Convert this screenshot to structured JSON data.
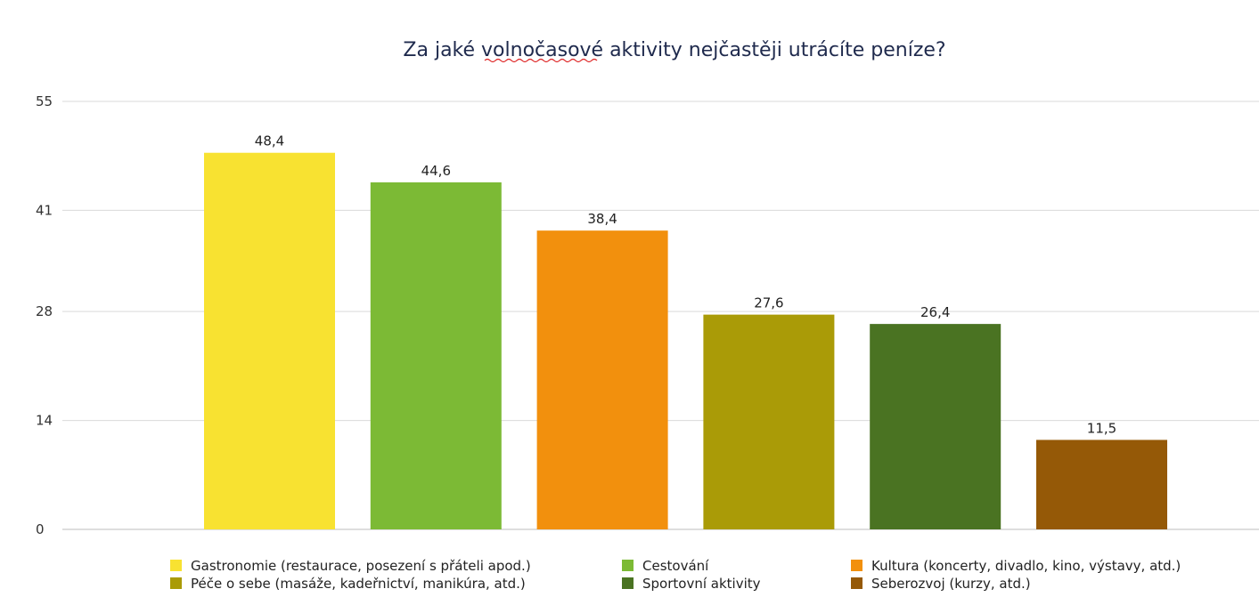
{
  "chart_data": {
    "type": "bar",
    "title": "Za jaké volnočasové aktivity nejčastěji utrácíte peníze?",
    "xlabel": "",
    "ylabel": "",
    "ylim": [
      0,
      55
    ],
    "yticks": [
      0,
      14,
      28,
      41,
      55
    ],
    "ytick_labels": [
      "0",
      "14",
      "28",
      "41",
      "55"
    ],
    "grid": true,
    "legend_position": "bottom",
    "categories": [
      "Gastronomie (restaurace, posezení s přáteli apod.)",
      "Cestování",
      "Kultura (koncerty, divadlo, kino, výstavy, atd.)",
      "Péče o sebe (masáže, kadeřnictví, manikúra, atd.)",
      "Sportovní aktivity",
      "Seberozvoj (kurzy, atd.)"
    ],
    "values": [
      48.4,
      44.6,
      38.4,
      27.6,
      26.4,
      11.5
    ],
    "value_labels": [
      "48,4",
      "44,6",
      "38,4",
      "27,6",
      "26,4",
      "11,5"
    ],
    "colors": [
      "#f8e231",
      "#7cba35",
      "#f2900d",
      "#aa9b07",
      "#4a7322",
      "#955907"
    ]
  }
}
